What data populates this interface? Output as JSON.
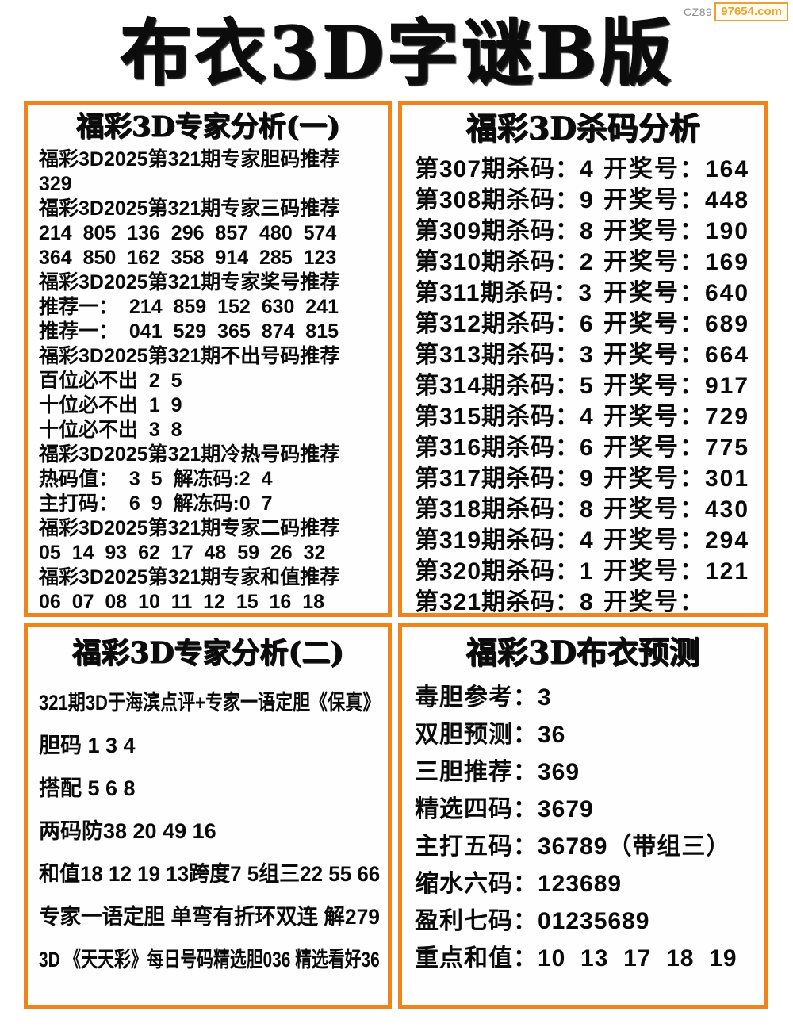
{
  "watermark": {
    "prefix": "CZ89",
    "site": "97654.com"
  },
  "page_title": "布衣3D字谜B版",
  "colors": {
    "border_orange": "#f08418",
    "watermark_orange": "#f5a12d",
    "watermark_gray": "#8c8c8c"
  },
  "panels": {
    "expert1": {
      "title": "福彩3D专家分析(一)",
      "lines": [
        "福彩3D2025第321期专家胆码推荐",
        "329",
        "福彩3D2025第321期专家三码推荐",
        "214  805  136  296  857  480  574",
        "364  850  162  358  914  285  123",
        "福彩3D2025第321期专家奖号推荐",
        "推荐一：  214  859  152  630  241",
        "推荐一：  041  529  365  874  815",
        "福彩3D2025第321期不出号码推荐",
        "百位必不出  2  5",
        "十位必不出  1  9",
        "十位必不出  3  8",
        "福彩3D2025第321期冷热号码推荐",
        "热码值：  3  5  解冻码:2  4",
        "主打码：  6  9  解冻码:0  7",
        "福彩3D2025第321期专家二码推荐",
        "05  14  93  62  17  48  59  26  32",
        "福彩3D2025第321期专家和值推荐",
        "06  07  08  10  11  12  15  16  18"
      ]
    },
    "kill": {
      "title": "福彩3D杀码分析",
      "rows": [
        {
          "left": "第307期杀码：4",
          "right": "开奖号：164"
        },
        {
          "left": "第308期杀码：9",
          "right": "开奖号：448"
        },
        {
          "left": "第309期杀码：8",
          "right": "开奖号：190"
        },
        {
          "left": "第310期杀码：2",
          "right": "开奖号：169"
        },
        {
          "left": "第311期杀码：3",
          "right": "开奖号：640"
        },
        {
          "left": "第312期杀码：6",
          "right": "开奖号：689"
        },
        {
          "left": "第313期杀码：3",
          "right": "开奖号：664"
        },
        {
          "left": "第314期杀码：5",
          "right": "开奖号：917"
        },
        {
          "left": "第315期杀码：4",
          "right": "开奖号：729"
        },
        {
          "left": "第316期杀码：6",
          "right": "开奖号：775"
        },
        {
          "left": "第317期杀码：9",
          "right": "开奖号：301"
        },
        {
          "left": "第318期杀码：8",
          "right": "开奖号：430"
        },
        {
          "left": "第319期杀码：4",
          "right": "开奖号：294"
        },
        {
          "left": "第320期杀码：1",
          "right": "开奖号：121"
        },
        {
          "left": "第321期杀码：8",
          "right": "开奖号："
        }
      ]
    },
    "expert2": {
      "title": "福彩3D专家分析(二)",
      "lines": [
        "321期3D于海滨点评+专家一语定胆《保真》",
        "胆码 1 3 4",
        "搭配 5 6 8",
        "两码防38 20 49 16",
        "和值18 12 19 13跨度7 5组三22 55 66",
        "专家一语定胆 单弯有折环双连 解279",
        "3D 《天天彩》每日号码精选胆036 精选看好36"
      ]
    },
    "buyi": {
      "title": "福彩3D布衣预测",
      "lines": [
        "毒胆参考：3",
        "双胆预测：36",
        "三胆推荐：369",
        "精选四码：3679",
        "主打五码：36789（带组三）",
        "缩水六码：123689",
        "盈利七码：01235689",
        "重点和值：10  13  17  18  19"
      ]
    }
  }
}
